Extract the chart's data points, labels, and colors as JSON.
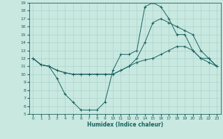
{
  "title": "",
  "xlabel": "Humidex (Indice chaleur)",
  "xlim": [
    -0.5,
    23.5
  ],
  "ylim": [
    5,
    19
  ],
  "xticks": [
    0,
    1,
    2,
    3,
    4,
    5,
    6,
    7,
    8,
    9,
    10,
    11,
    12,
    13,
    14,
    15,
    16,
    17,
    18,
    19,
    20,
    21,
    22,
    23
  ],
  "yticks": [
    5,
    6,
    7,
    8,
    9,
    10,
    11,
    12,
    13,
    14,
    15,
    16,
    17,
    18,
    19
  ],
  "background_color": "#c8e8e0",
  "grid_color": "#a8d4cc",
  "line_color": "#1a6060",
  "lines": [
    {
      "x": [
        0,
        1,
        2,
        3,
        4,
        5,
        6,
        7,
        8,
        9,
        10,
        11,
        12,
        13,
        14,
        15,
        16,
        17,
        18,
        19,
        20,
        21,
        22,
        23
      ],
      "y": [
        12,
        11.2,
        11,
        9.5,
        7.5,
        6.5,
        5.5,
        5.5,
        5.5,
        6.5,
        10.5,
        12.5,
        12.5,
        13,
        18.5,
        19,
        18.5,
        17,
        15,
        15,
        13,
        12,
        12,
        11
      ]
    },
    {
      "x": [
        0,
        1,
        2,
        3,
        4,
        5,
        6,
        7,
        8,
        9,
        10,
        11,
        12,
        13,
        14,
        15,
        16,
        17,
        18,
        19,
        20,
        21,
        22,
        23
      ],
      "y": [
        12,
        11.2,
        11,
        10.5,
        10.2,
        10,
        10,
        10,
        10,
        10,
        10,
        10.5,
        11,
        11.5,
        11.8,
        12,
        12.5,
        13,
        13.5,
        13.5,
        13,
        12,
        11.5,
        11
      ]
    },
    {
      "x": [
        0,
        1,
        2,
        3,
        4,
        5,
        6,
        7,
        8,
        9,
        10,
        11,
        12,
        13,
        14,
        15,
        16,
        17,
        18,
        19,
        20,
        21,
        22,
        23
      ],
      "y": [
        12,
        11.2,
        11,
        10.5,
        10.2,
        10,
        10,
        10,
        10,
        10,
        10,
        10.5,
        11,
        12,
        14,
        16.5,
        17,
        16.5,
        16,
        15.5,
        15,
        13,
        12,
        11
      ]
    }
  ]
}
